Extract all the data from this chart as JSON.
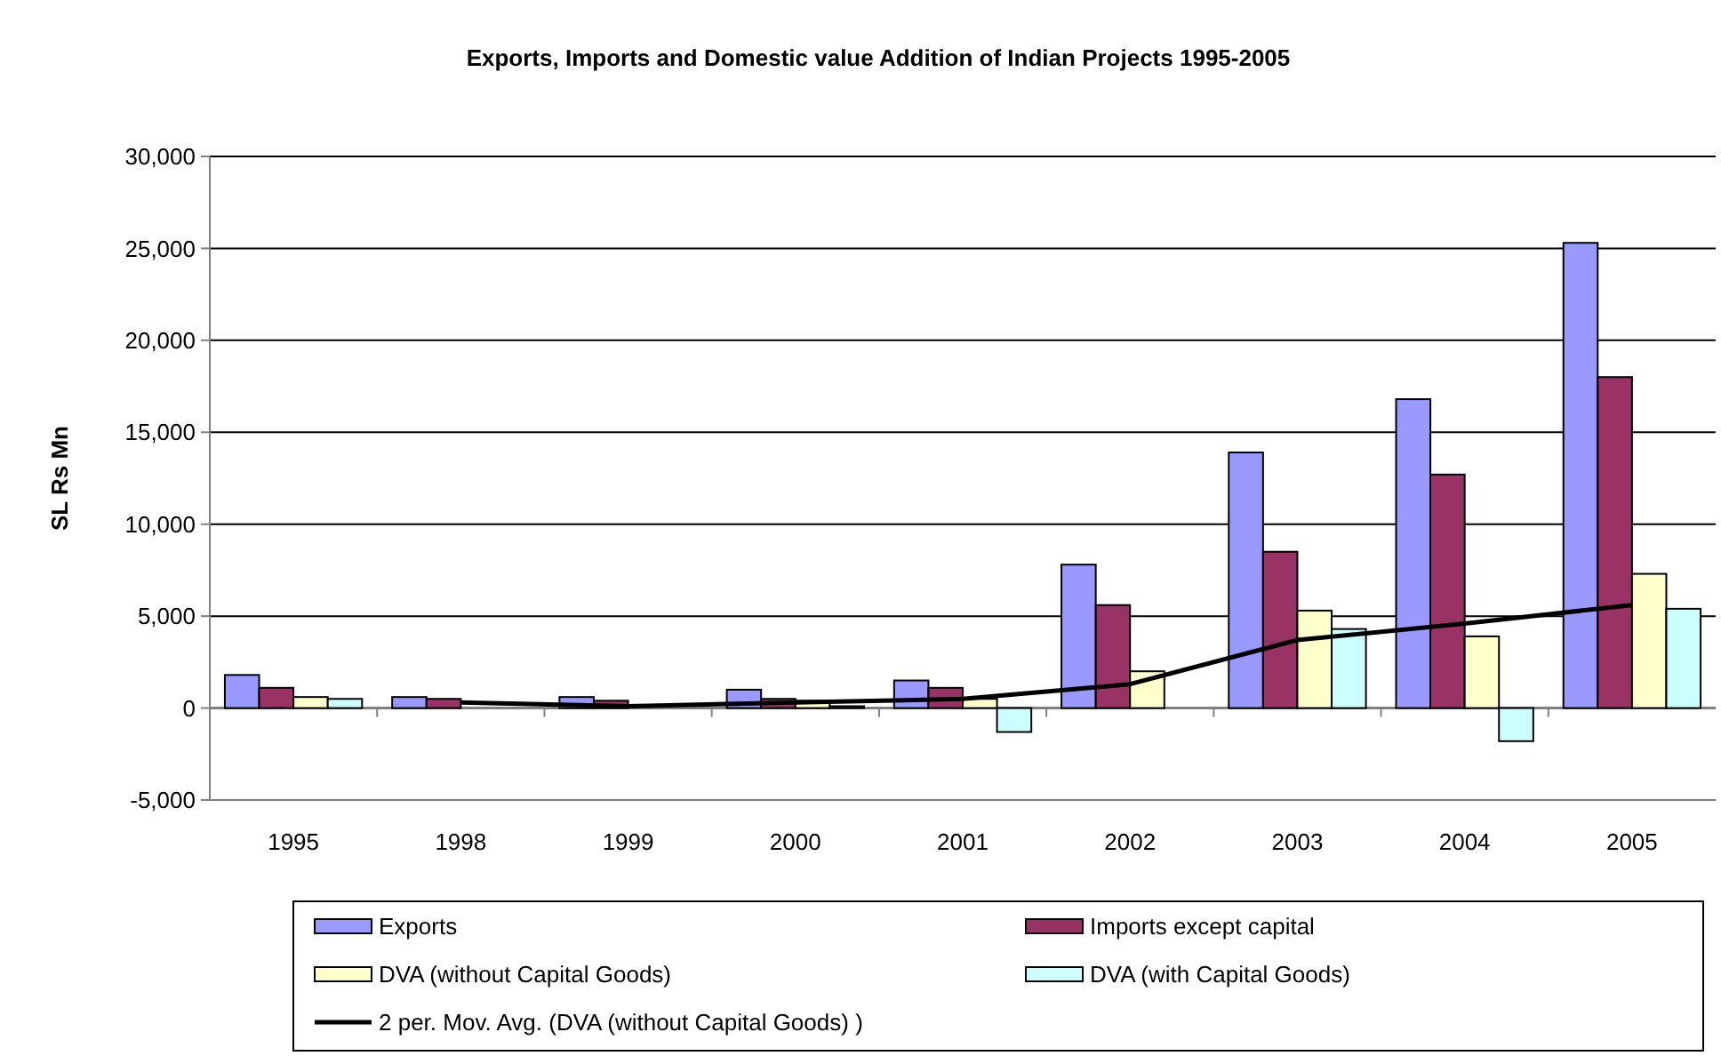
{
  "chart_data": {
    "type": "bar",
    "title": "Exports, Imports and Domestic value Addition of Indian Projects 1995-2005",
    "ylabel": "SL Rs Mn",
    "categories": [
      "1995",
      "1998",
      "1999",
      "2000",
      "2001",
      "2002",
      "2003",
      "2004",
      "2005"
    ],
    "series": [
      {
        "name": "Exports",
        "color": "#9999ff",
        "values": [
          1800,
          600,
          600,
          1000,
          1500,
          7800,
          13900,
          16800,
          25300
        ]
      },
      {
        "name": "Imports except capital",
        "color": "#993366",
        "values": [
          1100,
          500,
          400,
          500,
          1100,
          5600,
          8500,
          12700,
          18000
        ]
      },
      {
        "name": "DVA (without Capital Goods)",
        "color": "#ffffcc",
        "values": [
          600,
          null,
          null,
          400,
          500,
          2000,
          5300,
          3900,
          7300
        ]
      },
      {
        "name": "DVA (with Capital Goods)",
        "color": "#ccffff",
        "values": [
          500,
          null,
          null,
          100,
          -1300,
          0,
          4300,
          -1800,
          5400
        ]
      },
      {
        "name": "2 per. Mov. Avg. (DVA (without Capital Goods) )",
        "type": "line",
        "color": "#000000",
        "values": [
          null,
          300,
          100,
          300,
          500,
          1300,
          3700,
          4600,
          5600
        ]
      }
    ],
    "ylim": [
      -5000,
      30000
    ],
    "yticks": [
      {
        "value": -5000,
        "label": "-5,000"
      },
      {
        "value": 0,
        "label": "0"
      },
      {
        "value": 5000,
        "label": "5,000"
      },
      {
        "value": 10000,
        "label": "10,000"
      },
      {
        "value": 15000,
        "label": "15,000"
      },
      {
        "value": 20000,
        "label": "20,000"
      },
      {
        "value": 25000,
        "label": "25,000"
      },
      {
        "value": 30000,
        "label": "30,000"
      }
    ],
    "grid": "y",
    "legend": "bottom",
    "marker": "none"
  }
}
